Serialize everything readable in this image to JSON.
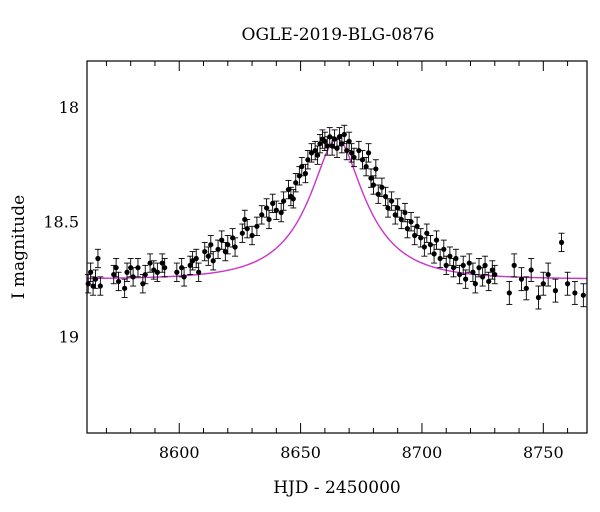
{
  "chart_data": {
    "type": "scatter",
    "title": "OGLE-2019-BLG-0876",
    "xlabel": "HJD - 2450000",
    "ylabel": "I magnitude",
    "xlim": [
      8562,
      8768
    ],
    "ylim": [
      19.42,
      17.8
    ],
    "y_inverted": true,
    "x_ticks": [
      8600,
      8650,
      8700,
      8750
    ],
    "x_tick_labels": [
      "8600",
      "8650",
      "8700",
      "8750"
    ],
    "y_ticks": [
      18.0,
      18.5,
      19.0
    ],
    "y_tick_labels": [
      "18",
      "18.5",
      "19"
    ],
    "grid": false,
    "model": {
      "name": "",
      "color": "#cc33cc",
      "t0": 8665.0,
      "u0": 0.35,
      "tE": 27.0,
      "baseline_mag": 18.75,
      "peak_mag": 18.14
    },
    "series": [
      {
        "name": "",
        "color": "#000000",
        "points": [
          [
            8562.5,
            18.77,
            0.04
          ],
          [
            8563.5,
            18.72,
            0.04
          ],
          [
            8564.5,
            18.78,
            0.04
          ],
          [
            8565.5,
            18.75,
            0.04
          ],
          [
            8566.5,
            18.66,
            0.04
          ],
          [
            8567.5,
            18.78,
            0.04
          ],
          [
            8573.0,
            18.73,
            0.04
          ],
          [
            8574.0,
            18.7,
            0.04
          ],
          [
            8575.0,
            18.76,
            0.04
          ],
          [
            8577.5,
            18.79,
            0.04
          ],
          [
            8578.5,
            18.72,
            0.04
          ],
          [
            8580.0,
            18.7,
            0.04
          ],
          [
            8581.0,
            18.74,
            0.04
          ],
          [
            8583.0,
            18.7,
            0.04
          ],
          [
            8585.0,
            18.77,
            0.04
          ],
          [
            8586.0,
            18.73,
            0.04
          ],
          [
            8588.0,
            18.68,
            0.04
          ],
          [
            8589.5,
            18.71,
            0.04
          ],
          [
            8591.0,
            18.72,
            0.04
          ],
          [
            8593.0,
            18.68,
            0.04
          ],
          [
            8594.0,
            18.7,
            0.04
          ],
          [
            8599.0,
            18.72,
            0.04
          ],
          [
            8601.0,
            18.7,
            0.04
          ],
          [
            8602.0,
            18.74,
            0.04
          ],
          [
            8604.5,
            18.69,
            0.04
          ],
          [
            8605.5,
            18.67,
            0.04
          ],
          [
            8607.0,
            18.66,
            0.04
          ],
          [
            8608.0,
            18.72,
            0.04
          ],
          [
            8610.5,
            18.63,
            0.04
          ],
          [
            8612.0,
            18.65,
            0.04
          ],
          [
            8613.0,
            18.6,
            0.04
          ],
          [
            8614.0,
            18.67,
            0.04
          ],
          [
            8616.0,
            18.62,
            0.04
          ],
          [
            8617.5,
            18.58,
            0.04
          ],
          [
            8619.0,
            18.63,
            0.04
          ],
          [
            8620.0,
            18.6,
            0.04
          ],
          [
            8622.0,
            18.57,
            0.04
          ],
          [
            8623.0,
            18.61,
            0.04
          ],
          [
            8626.0,
            18.55,
            0.04
          ],
          [
            8627.0,
            18.49,
            0.04
          ],
          [
            8628.0,
            18.53,
            0.04
          ],
          [
            8630.0,
            18.56,
            0.04
          ],
          [
            8632.0,
            18.52,
            0.04
          ],
          [
            8634.0,
            18.47,
            0.04
          ],
          [
            8636.0,
            18.44,
            0.04
          ],
          [
            8637.0,
            18.49,
            0.04
          ],
          [
            8638.5,
            18.42,
            0.04
          ],
          [
            8640.0,
            18.45,
            0.04
          ],
          [
            8642.0,
            18.46,
            0.04
          ],
          [
            8643.0,
            18.41,
            0.04
          ],
          [
            8645.0,
            18.36,
            0.04
          ],
          [
            8646.0,
            18.39,
            0.04
          ],
          [
            8647.0,
            18.4,
            0.04
          ],
          [
            8648.0,
            18.33,
            0.04
          ],
          [
            8649.5,
            18.3,
            0.04
          ],
          [
            8650.5,
            18.26,
            0.04
          ],
          [
            8652.0,
            18.29,
            0.04
          ],
          [
            8653.0,
            18.23,
            0.04
          ],
          [
            8654.5,
            18.2,
            0.04
          ],
          [
            8656.0,
            18.19,
            0.04
          ],
          [
            8657.0,
            18.21,
            0.04
          ],
          [
            8658.0,
            18.16,
            0.04
          ],
          [
            8659.0,
            18.14,
            0.04
          ],
          [
            8660.0,
            18.15,
            0.04
          ],
          [
            8661.0,
            18.17,
            0.04
          ],
          [
            8662.0,
            18.13,
            0.04
          ],
          [
            8663.0,
            18.17,
            0.04
          ],
          [
            8664.0,
            18.14,
            0.04
          ],
          [
            8665.0,
            18.18,
            0.04
          ],
          [
            8666.0,
            18.13,
            0.04
          ],
          [
            8667.0,
            18.16,
            0.04
          ],
          [
            8668.0,
            18.12,
            0.04
          ],
          [
            8669.0,
            18.19,
            0.04
          ],
          [
            8670.0,
            18.15,
            0.04
          ],
          [
            8671.0,
            18.2,
            0.04
          ],
          [
            8672.0,
            18.22,
            0.04
          ],
          [
            8674.0,
            18.19,
            0.04
          ],
          [
            8675.5,
            18.23,
            0.04
          ],
          [
            8677.0,
            18.26,
            0.04
          ],
          [
            8678.0,
            18.2,
            0.04
          ],
          [
            8679.0,
            18.31,
            0.04
          ],
          [
            8680.0,
            18.34,
            0.04
          ],
          [
            8681.0,
            18.27,
            0.04
          ],
          [
            8682.0,
            18.38,
            0.04
          ],
          [
            8683.5,
            18.35,
            0.04
          ],
          [
            8685.0,
            18.39,
            0.04
          ],
          [
            8686.0,
            18.44,
            0.04
          ],
          [
            8687.5,
            18.41,
            0.04
          ],
          [
            8689.0,
            18.47,
            0.04
          ],
          [
            8690.0,
            18.44,
            0.04
          ],
          [
            8691.5,
            18.49,
            0.04
          ],
          [
            8693.0,
            18.46,
            0.04
          ],
          [
            8694.0,
            18.53,
            0.04
          ],
          [
            8695.5,
            18.5,
            0.04
          ],
          [
            8697.0,
            18.56,
            0.04
          ],
          [
            8698.0,
            18.52,
            0.04
          ],
          [
            8699.5,
            18.57,
            0.04
          ],
          [
            8701.0,
            18.61,
            0.04
          ],
          [
            8702.0,
            18.55,
            0.04
          ],
          [
            8703.5,
            18.6,
            0.04
          ],
          [
            8705.0,
            18.64,
            0.04
          ],
          [
            8706.0,
            18.58,
            0.04
          ],
          [
            8707.5,
            18.66,
            0.04
          ],
          [
            8709.0,
            18.62,
            0.04
          ],
          [
            8710.0,
            18.69,
            0.04
          ],
          [
            8711.5,
            18.65,
            0.04
          ],
          [
            8713.0,
            18.7,
            0.04
          ],
          [
            8714.0,
            18.66,
            0.04
          ],
          [
            8715.5,
            18.73,
            0.04
          ],
          [
            8717.0,
            18.69,
            0.04
          ],
          [
            8718.0,
            18.75,
            0.04
          ],
          [
            8719.5,
            18.68,
            0.04
          ],
          [
            8721.0,
            18.72,
            0.04
          ],
          [
            8722.0,
            18.77,
            0.04
          ],
          [
            8723.5,
            18.7,
            0.04
          ],
          [
            8725.0,
            18.74,
            0.04
          ],
          [
            8726.0,
            18.69,
            0.04
          ],
          [
            8727.5,
            18.76,
            0.04
          ],
          [
            8729.0,
            18.71,
            0.04
          ],
          [
            8730.0,
            18.73,
            0.04
          ],
          [
            8736.0,
            18.81,
            0.05
          ],
          [
            8738.0,
            18.69,
            0.05
          ],
          [
            8741.0,
            18.75,
            0.05
          ],
          [
            8743.0,
            18.79,
            0.05
          ],
          [
            8745.0,
            18.71,
            0.05
          ],
          [
            8748.0,
            18.83,
            0.05
          ],
          [
            8750.0,
            18.77,
            0.05
          ],
          [
            8752.0,
            18.73,
            0.05
          ],
          [
            8755.0,
            18.8,
            0.05
          ],
          [
            8757.5,
            18.59,
            0.04
          ],
          [
            8760.0,
            18.77,
            0.05
          ],
          [
            8763.0,
            18.81,
            0.05
          ],
          [
            8766.5,
            18.82,
            0.05
          ]
        ]
      }
    ]
  }
}
